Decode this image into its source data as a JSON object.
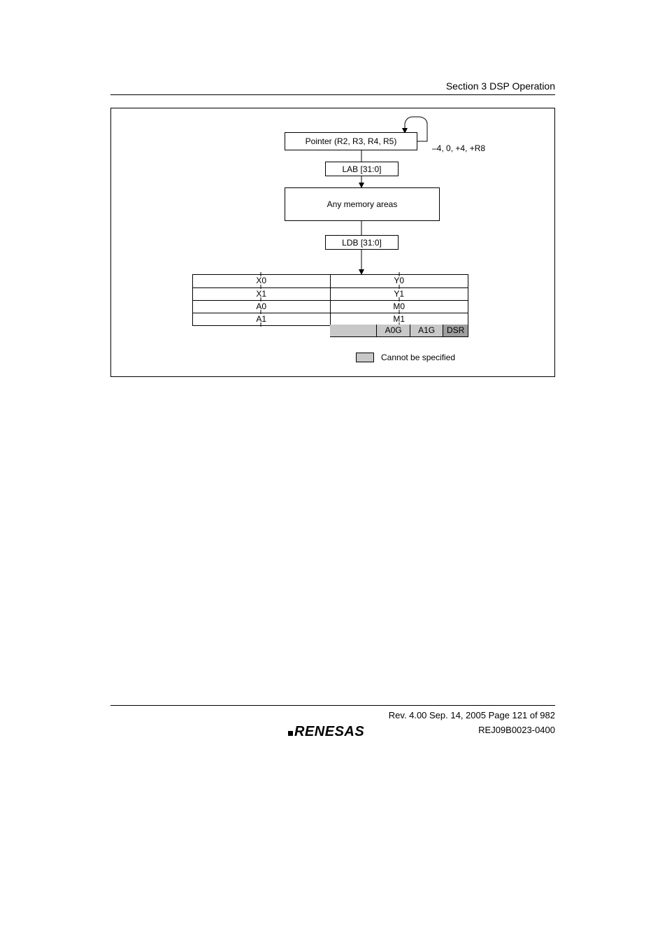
{
  "header": {
    "section_label": "Section 3   DSP Operation"
  },
  "diagram": {
    "pointer_label": "Pointer (R2, R3, R4, R5)",
    "lab_label": "LAB [31:0]",
    "memory_label": "Any memory areas",
    "ldb_label": "LDB [31:0]",
    "offsets_label": "–4, 0, +4, +R8",
    "regs": {
      "rows": [
        {
          "left": "X0",
          "right": "Y0"
        },
        {
          "left": "X1",
          "right": "Y1"
        },
        {
          "left": "A0",
          "right": "M0"
        },
        {
          "left": "A1",
          "right": "M1"
        }
      ],
      "guard": {
        "a0g": "A0G",
        "a1g": "A1G",
        "dsr": "DSR"
      }
    },
    "legend": {
      "text": "Cannot be specified"
    },
    "colors": {
      "background": "#ffffff",
      "border": "#000000",
      "shade_light": "#c8c8c8",
      "shade_dark": "#9e9e9e",
      "text": "#000000"
    },
    "guard_widths": {
      "empty_pct": 34,
      "a0g_pct": 24,
      "a1g_pct": 24,
      "dsr_pct": 18
    }
  },
  "footer": {
    "rev_line": "Rev. 4.00  Sep. 14, 2005  Page 121 of 982",
    "doc_id": "REJ09B0023-0400",
    "logo_text": "RENESAS"
  }
}
